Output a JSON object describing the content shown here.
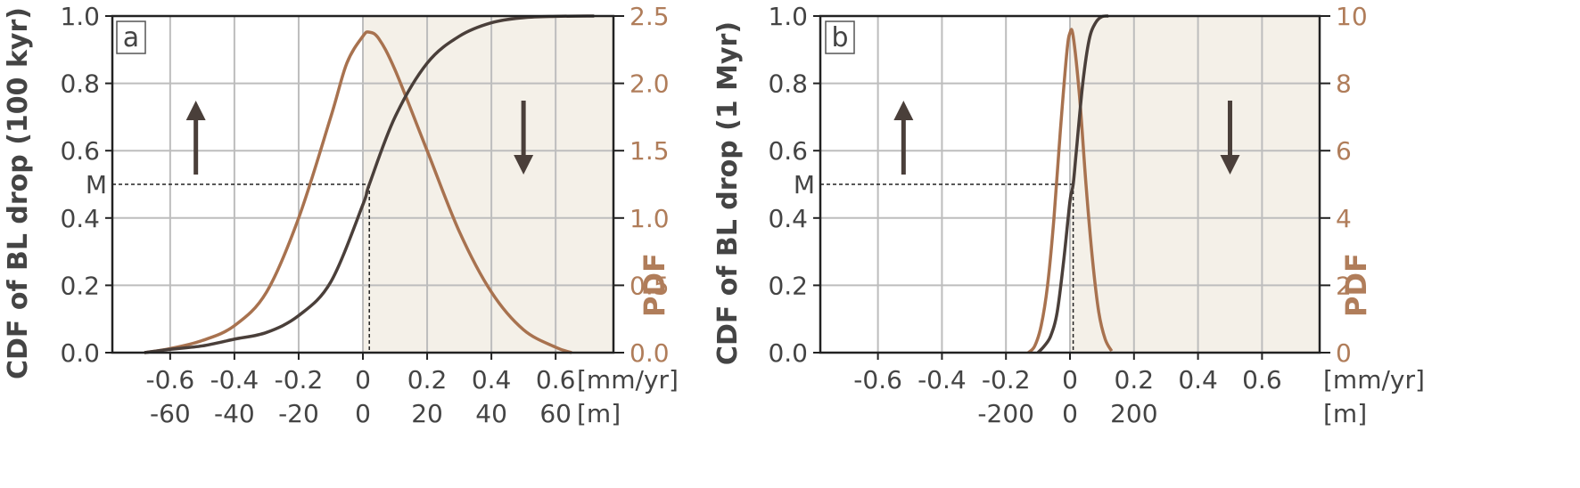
{
  "colors": {
    "cdf": "#4a3f3a",
    "pdf": "#a8724f",
    "pdf_axis": "#b07d5a",
    "shade": "#f4f0e8",
    "grid": "#bdbdbd",
    "axis": "#222222",
    "dashed": "#222222"
  },
  "chart_data": [
    {
      "type": "line",
      "panel_label": "a",
      "ylabel": "CDF of BL drop (100 kyr)",
      "y2label": "PDF",
      "ylim": [
        0,
        1
      ],
      "y2lim": [
        0,
        2.5
      ],
      "xlim": [
        -0.78,
        0.78
      ],
      "xticks": [
        -0.6,
        -0.4,
        -0.2,
        0,
        0.2,
        0.4,
        0.6
      ],
      "xtick_labels_rate": [
        "-0.6",
        "-0.4",
        "-0.2",
        "0",
        "0.2",
        "0.4",
        "0.6"
      ],
      "xtick_labels_m": [
        "-60",
        "-40",
        "-20",
        "0",
        "20",
        "40",
        "60"
      ],
      "x_unit_rate": "[mm/yr]",
      "x_unit_m": "[m]",
      "yticks": [
        "0.0",
        "0.2",
        "0.4",
        "0.6",
        "0.8",
        "1.0"
      ],
      "y2ticks": [
        "0.0",
        "0.5",
        "1.0",
        "1.5",
        "2.0",
        "2.5"
      ],
      "median_label": "M",
      "median_x": 0.02,
      "median_y": 0.5,
      "shaded_from": 0.0,
      "arrows": [
        {
          "x": -0.52,
          "direction": "up"
        },
        {
          "x": 0.5,
          "direction": "down"
        }
      ],
      "series": [
        {
          "x": [
            -0.68,
            -0.6,
            -0.5,
            -0.4,
            -0.3,
            -0.2,
            -0.1,
            0.0,
            0.02,
            0.1,
            0.2,
            0.3,
            0.4,
            0.5,
            0.6,
            0.72
          ],
          "values": [
            0.0,
            0.01,
            0.02,
            0.04,
            0.06,
            0.11,
            0.21,
            0.44,
            0.5,
            0.7,
            0.86,
            0.94,
            0.98,
            0.995,
            0.999,
            1.0
          ]
        },
        {
          "x": [
            -0.68,
            -0.6,
            -0.5,
            -0.4,
            -0.3,
            -0.2,
            -0.1,
            -0.05,
            0.0,
            0.02,
            0.05,
            0.1,
            0.2,
            0.3,
            0.4,
            0.5,
            0.6,
            0.65
          ],
          "values": [
            0.0,
            0.03,
            0.09,
            0.2,
            0.45,
            1.0,
            1.75,
            2.15,
            2.35,
            2.38,
            2.33,
            2.1,
            1.5,
            0.9,
            0.45,
            0.17,
            0.04,
            0.0
          ]
        }
      ]
    },
    {
      "type": "line",
      "panel_label": "b",
      "ylabel": "CDF of BL drop (1 Myr)",
      "y2label": "PDF",
      "ylim": [
        0,
        1
      ],
      "y2lim": [
        0,
        10
      ],
      "xlim": [
        -0.78,
        0.78
      ],
      "xticks": [
        -0.6,
        -0.4,
        -0.2,
        0,
        0.2,
        0.4,
        0.6
      ],
      "xtick_labels_rate": [
        "-0.6",
        "-0.4",
        "-0.2",
        "0",
        "0.2",
        "0.4",
        "0.6"
      ],
      "xtick_labels_m": [
        "",
        "",
        "-200",
        "0",
        "200",
        "",
        ""
      ],
      "x_unit_rate": "[mm/yr]",
      "x_unit_m": "[m]",
      "yticks": [
        "0.0",
        "0.2",
        "0.4",
        "0.6",
        "0.8",
        "1.0"
      ],
      "y2ticks": [
        "0",
        "2",
        "4",
        "6",
        "8",
        "10"
      ],
      "median_label": "M",
      "median_x": 0.01,
      "median_y": 0.5,
      "shaded_from": 0.0,
      "arrows": [
        {
          "x": -0.52,
          "direction": "up"
        },
        {
          "x": 0.5,
          "direction": "down"
        }
      ],
      "series": [
        {
          "x": [
            -0.1,
            -0.08,
            -0.06,
            -0.04,
            -0.02,
            0.0,
            0.01,
            0.02,
            0.04,
            0.06,
            0.08,
            0.1,
            0.12
          ],
          "values": [
            0.0,
            0.02,
            0.05,
            0.12,
            0.27,
            0.45,
            0.5,
            0.6,
            0.8,
            0.93,
            0.98,
            0.998,
            1.0
          ]
        },
        {
          "x": [
            -0.13,
            -0.11,
            -0.09,
            -0.07,
            -0.05,
            -0.03,
            -0.01,
            0.0,
            0.01,
            0.03,
            0.05,
            0.07,
            0.09,
            0.11,
            0.13
          ],
          "values": [
            0.0,
            0.2,
            0.8,
            2.0,
            4.0,
            6.6,
            8.9,
            9.5,
            9.4,
            7.6,
            5.0,
            2.8,
            1.2,
            0.4,
            0.05
          ]
        }
      ]
    }
  ]
}
